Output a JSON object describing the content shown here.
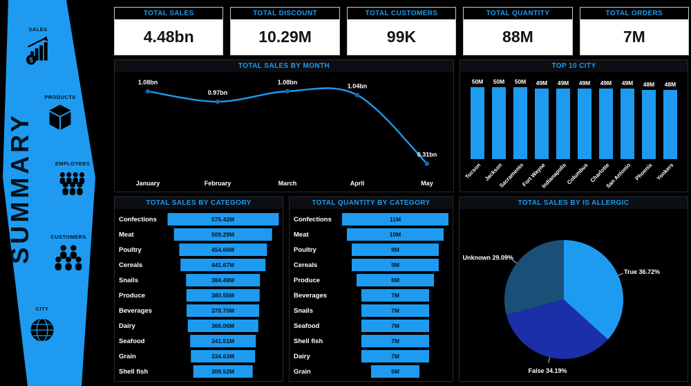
{
  "colors": {
    "accent": "#1E9BF0",
    "bar": "#1E9BF0",
    "line": "#1E9BF0",
    "dot": "#1464B4",
    "pie_true": "#1E9BF0",
    "pie_false": "#1B2FA8",
    "pie_unknown": "#1A5078"
  },
  "sidebar": {
    "title": "SUMMARY",
    "items": [
      {
        "label": "SALES",
        "icon": "sales-chart-dollar-icon"
      },
      {
        "label": "PRODUCTS",
        "icon": "product-box-icon"
      },
      {
        "label": "EMPLOYEES",
        "icon": "employees-group-icon"
      },
      {
        "label": "CUSTOMERS",
        "icon": "customers-group-icon"
      },
      {
        "label": "CITY",
        "icon": "city-globe-icon"
      }
    ]
  },
  "kpis": [
    {
      "label": "TOTAL SALES",
      "value": "4.48bn"
    },
    {
      "label": "TOTAL DISCOUNT",
      "value": "10.29M"
    },
    {
      "label": "TOTAL CUSTOMERS",
      "value": "99K"
    },
    {
      "label": "TOTAL QUANTITY",
      "value": "88M"
    },
    {
      "label": "TOTAL ORDERS",
      "value": "7M"
    }
  ],
  "chart_data": [
    {
      "id": "total_sales_by_month",
      "type": "line",
      "title": "TOTAL SALES BY MONTH",
      "x": [
        "January",
        "February",
        "March",
        "April",
        "May"
      ],
      "values": [
        1.08,
        0.97,
        1.08,
        1.04,
        0.31
      ],
      "labels": [
        "1.08bn",
        "0.97bn",
        "1.08bn",
        "1.04bn",
        "0.31bn"
      ],
      "unit": "bn"
    },
    {
      "id": "top_10_city",
      "type": "bar",
      "title": "TOP 10 CITY",
      "categories": [
        "Tucson",
        "Jackson",
        "Sacramento",
        "Fort Wayne",
        "Indianapolis",
        "Columbus",
        "Charlotte",
        "San Antonio",
        "Phoenix",
        "Yonkers"
      ],
      "values": [
        50,
        50,
        50,
        49,
        49,
        49,
        49,
        49,
        48,
        48
      ],
      "labels": [
        "50M",
        "50M",
        "50M",
        "49M",
        "49M",
        "49M",
        "49M",
        "49M",
        "48M",
        "48M"
      ],
      "unit": "M"
    },
    {
      "id": "total_sales_by_category",
      "type": "funnel",
      "title": "TOTAL SALES BY CATEGORY",
      "categories": [
        "Confections",
        "Meat",
        "Poultry",
        "Cereals",
        "Snails",
        "Produce",
        "Beverages",
        "Dairy",
        "Seafood",
        "Grain",
        "Shell fish"
      ],
      "values": [
        575.42,
        509.29,
        454.66,
        441.67,
        384.49,
        380.55,
        378.75,
        366.06,
        341.51,
        334.63,
        309.52
      ],
      "labels": [
        "575.42M",
        "509.29M",
        "454.66M",
        "441.67M",
        "384.49M",
        "380.55M",
        "378.75M",
        "366.06M",
        "341.51M",
        "334.63M",
        "309.52M"
      ],
      "unit": "M"
    },
    {
      "id": "total_quantity_by_category",
      "type": "funnel",
      "title": "TOTAL QUANTITY BY CATEGORY",
      "categories": [
        "Confections",
        "Meat",
        "Poultry",
        "Cereals",
        "Produce",
        "Beverages",
        "Snails",
        "Seafood",
        "Shell fish",
        "Dairy",
        "Grain"
      ],
      "values": [
        11,
        10,
        9,
        9,
        8,
        7,
        7,
        7,
        7,
        7,
        5
      ],
      "labels": [
        "11M",
        "10M",
        "9M",
        "9M",
        "8M",
        "7M",
        "7M",
        "7M",
        "7M",
        "7M",
        "5M"
      ],
      "unit": "M"
    },
    {
      "id": "total_sales_by_is_allergic",
      "type": "pie",
      "title": "TOTAL SALES BY IS ALLERGIC",
      "slices": [
        {
          "label": "True",
          "pct": 36.72,
          "text": "True 36.72%",
          "color_key": "pie_true"
        },
        {
          "label": "False",
          "pct": 34.19,
          "text": "False 34.19%",
          "color_key": "pie_false"
        },
        {
          "label": "Unknown",
          "pct": 29.09,
          "text": "Unknown 29.09%",
          "color_key": "pie_unknown"
        }
      ]
    }
  ]
}
